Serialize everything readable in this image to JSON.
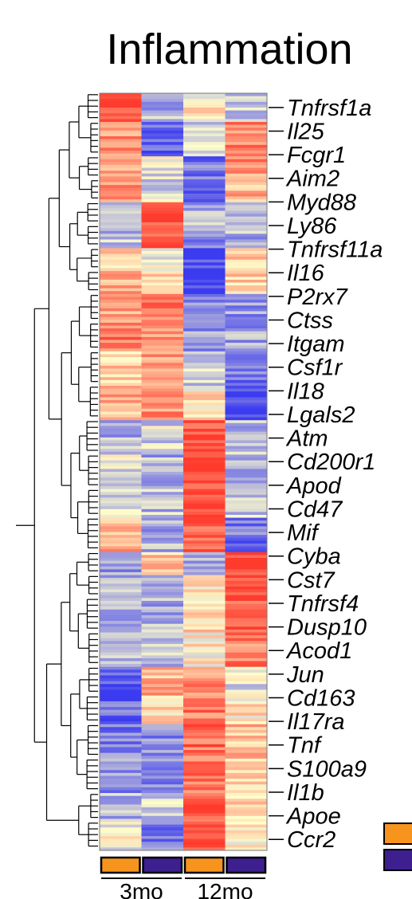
{
  "chart_data": {
    "type": "heatmap",
    "title": "Inflammation",
    "columns": [
      {
        "group": "3mo",
        "condition_color": "#F7941D"
      },
      {
        "group": "3mo",
        "condition_color": "#3D1F8F"
      },
      {
        "group": "12mo",
        "condition_color": "#F7941D"
      },
      {
        "group": "12mo",
        "condition_color": "#3D1F8F"
      }
    ],
    "groups": [
      "3mo",
      "12mo"
    ],
    "color_scale": {
      "low": "#3B3BF0",
      "mid": "#FFFFCC",
      "high": "#FF3B2E",
      "range": [
        -1.5,
        1.5
      ]
    },
    "dendrogram": "rows",
    "row_labels": [
      "Tnfrsf1a",
      "Il25",
      "Fcgr1",
      "Aim2",
      "Myd88",
      "Ly86",
      "Tnfrsf11a",
      "Il16",
      "P2rx7",
      "Ctss",
      "Itgam",
      "Csf1r",
      "Il18",
      "Lgals2",
      "Atm",
      "Cd200r1",
      "Apod",
      "Cd47",
      "Mif",
      "Cyba",
      "Cst7",
      "Tnfrsf4",
      "Dusp10",
      "Acod1",
      "Jun",
      "Cd163",
      "Il17ra",
      "Tnf",
      "S100a9",
      "Il1b",
      "Apoe",
      "Ccr2"
    ],
    "row_blocks": [
      {
        "rows": 10,
        "values": [
          1.4,
          -0.6,
          0.1,
          -0.5
        ]
      },
      {
        "rows": 12,
        "values": [
          0.8,
          -1.2,
          -0.3,
          0.9
        ]
      },
      {
        "rows": 8,
        "values": [
          0.8,
          -0.2,
          -1.0,
          0.8
        ]
      },
      {
        "rows": 8,
        "values": [
          0.9,
          -0.3,
          -1.0,
          0.6
        ]
      },
      {
        "rows": 8,
        "values": [
          -0.4,
          1.4,
          -0.6,
          -0.7
        ]
      },
      {
        "rows": 8,
        "values": [
          -0.5,
          1.3,
          -0.8,
          -0.6
        ]
      },
      {
        "rows": 8,
        "values": [
          0.3,
          0.0,
          -1.4,
          0.5
        ]
      },
      {
        "rows": 8,
        "values": [
          0.6,
          0.2,
          -1.4,
          0.3
        ]
      },
      {
        "rows": 10,
        "values": [
          0.7,
          1.0,
          -0.8,
          -0.8
        ]
      },
      {
        "rows": 10,
        "values": [
          1.1,
          0.9,
          -0.8,
          -0.7
        ]
      },
      {
        "rows": 12,
        "values": [
          0.4,
          0.7,
          -0.3,
          -1.0
        ]
      },
      {
        "rows": 12,
        "values": [
          0.6,
          0.8,
          0.2,
          -1.4
        ]
      },
      {
        "rows": 12,
        "values": [
          -0.6,
          -0.3,
          1.4,
          -0.5
        ]
      },
      {
        "rows": 12,
        "values": [
          -0.2,
          -0.6,
          1.4,
          -0.6
        ]
      },
      {
        "rows": 10,
        "values": [
          -0.4,
          -0.5,
          1.5,
          -0.4
        ]
      },
      {
        "rows": 12,
        "values": [
          0.6,
          -0.6,
          1.2,
          -1.0
        ]
      },
      {
        "rows": 8,
        "values": [
          -0.7,
          0.4,
          -0.6,
          1.4
        ]
      },
      {
        "rows": 8,
        "values": [
          -0.6,
          -0.6,
          0.2,
          1.4
        ]
      },
      {
        "rows": 12,
        "values": [
          -0.7,
          -0.6,
          0.3,
          1.3
        ]
      },
      {
        "rows": 12,
        "values": [
          -0.5,
          -0.5,
          0.1,
          1.0
        ]
      },
      {
        "rows": 10,
        "values": [
          -1.3,
          0.6,
          0.8,
          -0.2
        ]
      },
      {
        "rows": 10,
        "values": [
          -1.2,
          0.3,
          1.0,
          0.2
        ]
      },
      {
        "rows": 12,
        "values": [
          -1.0,
          -0.8,
          1.1,
          0.5
        ]
      },
      {
        "rows": 12,
        "values": [
          -0.8,
          -0.8,
          1.0,
          0.3
        ]
      },
      {
        "rows": 10,
        "values": [
          -0.6,
          -0.4,
          1.3,
          0.4
        ]
      },
      {
        "rows": 10,
        "values": [
          -0.1,
          -0.9,
          1.2,
          0.0
        ]
      }
    ]
  }
}
